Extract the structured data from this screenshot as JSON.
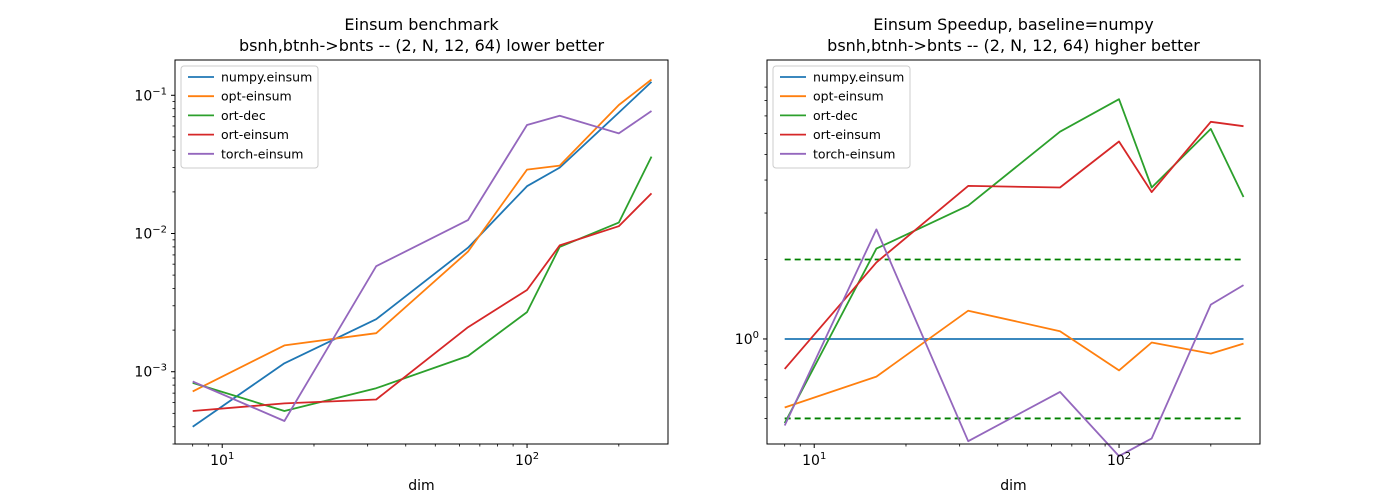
{
  "chart_data": [
    {
      "type": "line",
      "title": "Einsum benchmark",
      "subtitle": "bsnh,btnh->bnts -- (2, N, 12, 64) lower better",
      "xlabel": "dim",
      "ylabel": "",
      "xscale": "log",
      "yscale": "log",
      "xlim": [
        7,
        290
      ],
      "ylim": [
        0.0003,
        0.18
      ],
      "legend_position": "upper-left",
      "grid": false,
      "x_ticks": [
        {
          "value": 10,
          "base": "10",
          "exp": "1"
        },
        {
          "value": 100,
          "base": "10",
          "exp": "2"
        }
      ],
      "y_ticks": [
        {
          "value": 0.001,
          "base": "10",
          "exp": "−3"
        },
        {
          "value": 0.01,
          "base": "10",
          "exp": "−2"
        },
        {
          "value": 0.1,
          "base": "10",
          "exp": "−1"
        }
      ],
      "x": [
        8,
        16,
        32,
        64,
        100,
        128,
        200,
        256
      ],
      "series": [
        {
          "name": "numpy.einsum",
          "color": "#1f77b4",
          "values": [
            0.0004,
            0.00115,
            0.0024,
            0.0079,
            0.022,
            0.03,
            0.075,
            0.125
          ]
        },
        {
          "name": "opt-einsum",
          "color": "#ff7f0e",
          "values": [
            0.00072,
            0.00155,
            0.0019,
            0.0074,
            0.029,
            0.031,
            0.085,
            0.13
          ]
        },
        {
          "name": "ort-dec",
          "color": "#2ca02c",
          "values": [
            0.00083,
            0.00052,
            0.00076,
            0.0013,
            0.0027,
            0.008,
            0.012,
            0.036
          ]
        },
        {
          "name": "ort-einsum",
          "color": "#d62728",
          "values": [
            0.00052,
            0.00059,
            0.00063,
            0.0021,
            0.0039,
            0.0082,
            0.0113,
            0.0195
          ]
        },
        {
          "name": "torch-einsum",
          "color": "#9467bd",
          "values": [
            0.00085,
            0.00044,
            0.0058,
            0.0125,
            0.061,
            0.071,
            0.053,
            0.077
          ]
        }
      ]
    },
    {
      "type": "line",
      "title": "Einsum Speedup, baseline=numpy",
      "subtitle": "bsnh,btnh->bnts -- (2, N, 12, 64) higher better",
      "xlabel": "dim",
      "ylabel": "",
      "xscale": "log",
      "yscale": "log",
      "xlim": [
        7,
        290
      ],
      "ylim": [
        0.4,
        11.4
      ],
      "legend_position": "upper-left",
      "grid": false,
      "x_ticks": [
        {
          "value": 10,
          "base": "10",
          "exp": "1"
        },
        {
          "value": 100,
          "base": "10",
          "exp": "2"
        }
      ],
      "y_ticks": [
        {
          "value": 1,
          "base": "10",
          "exp": "0"
        }
      ],
      "reference_lines": [
        {
          "y": 2,
          "color": "#008000",
          "style": "dashed"
        },
        {
          "y": 0.5,
          "color": "#008000",
          "style": "dashed"
        }
      ],
      "x": [
        8,
        16,
        32,
        64,
        100,
        128,
        200,
        256
      ],
      "series": [
        {
          "name": "numpy.einsum",
          "color": "#1f77b4",
          "values": [
            1,
            1,
            1,
            1,
            1,
            1,
            1,
            1
          ]
        },
        {
          "name": "opt-einsum",
          "color": "#ff7f0e",
          "values": [
            0.55,
            0.72,
            1.28,
            1.07,
            0.76,
            0.97,
            0.88,
            0.96
          ]
        },
        {
          "name": "ort-dec",
          "color": "#2ca02c",
          "values": [
            0.48,
            2.2,
            3.2,
            6.1,
            8.1,
            3.75,
            6.25,
            3.45
          ]
        },
        {
          "name": "ort-einsum",
          "color": "#d62728",
          "values": [
            0.77,
            1.95,
            3.8,
            3.75,
            5.6,
            3.6,
            6.65,
            6.4
          ]
        },
        {
          "name": "torch-einsum",
          "color": "#9467bd",
          "values": [
            0.47,
            2.6,
            0.41,
            0.63,
            0.36,
            0.42,
            1.35,
            1.6
          ]
        }
      ]
    }
  ]
}
